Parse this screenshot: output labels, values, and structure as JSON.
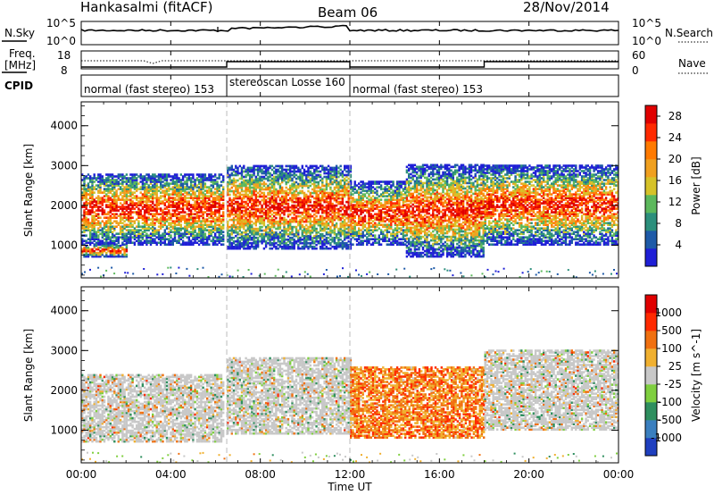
{
  "header": {
    "station": "Hankasalmi (fitACF)",
    "beam": "Beam 06",
    "date": "28/Nov/2014"
  },
  "side_labels": {
    "nsky": "N.Sky",
    "nsearch": "N.Search",
    "freq_line1": "Freq.",
    "freq_line2": "[MHz]",
    "nave": "Nave",
    "cpid": "CPID"
  },
  "noise_panel": {
    "left_ticks": [
      "10^5",
      "10^0"
    ],
    "right_ticks": [
      "10^5",
      "10^0"
    ]
  },
  "freq_panel": {
    "left_ticks": [
      "18",
      "8"
    ],
    "right_ticks": [
      "60",
      "0"
    ]
  },
  "cpid_segments": [
    {
      "label": "normal (fast stereo) 153",
      "start_h": 0,
      "end_h": 6.5
    },
    {
      "label": "stereoscan Losse 160",
      "start_h": 6.5,
      "end_h": 12
    },
    {
      "label": "normal (fast stereo) 153",
      "start_h": 12,
      "end_h": 24
    }
  ],
  "chart_data": [
    {
      "type": "heatmap",
      "xlabel": "Time UT",
      "ylabel": "Slant Range [km]",
      "x_ticks": [
        "00:00",
        "04:00",
        "08:00",
        "12:00",
        "16:00",
        "20:00",
        "00:00"
      ],
      "x_range_hours": [
        0,
        24
      ],
      "y_ticks": [
        "1000",
        "2000",
        "3000",
        "4000"
      ],
      "ylim": [
        180,
        4600
      ],
      "colorbar": {
        "label": "Power [dB]",
        "ticks": [
          "4",
          "8",
          "12",
          "16",
          "20",
          "24",
          "28"
        ],
        "range": [
          0,
          30
        ],
        "colors": [
          "#1f1fd6",
          "#1e5aa8",
          "#2c8f7c",
          "#5cb85c",
          "#d6c229",
          "#f0a020",
          "#ff7a00",
          "#ff2a00",
          "#e00000"
        ]
      },
      "echo_bands": [
        {
          "start_h": 0,
          "end_h": 6.3,
          "range_km": [
            1000,
            2800
          ],
          "peak_db": 28
        },
        {
          "start_h": 0,
          "end_h": 2,
          "range_km": [
            700,
            1000
          ],
          "peak_db": 28
        },
        {
          "start_h": 6.5,
          "end_h": 12,
          "range_km": [
            900,
            3000
          ],
          "peak_db": 24
        },
        {
          "start_h": 12,
          "end_h": 14.5,
          "range_km": [
            1000,
            2600
          ],
          "peak_db": 28
        },
        {
          "start_h": 14.5,
          "end_h": 18,
          "range_km": [
            700,
            3000
          ],
          "peak_db": 28
        },
        {
          "start_h": 18,
          "end_h": 24,
          "range_km": [
            1000,
            3000
          ],
          "peak_db": 28
        }
      ]
    },
    {
      "type": "heatmap",
      "xlabel": "Time UT",
      "ylabel": "Slant Range [km]",
      "x_ticks": [
        "00:00",
        "04:00",
        "08:00",
        "12:00",
        "16:00",
        "20:00",
        "00:00"
      ],
      "x_range_hours": [
        0,
        24
      ],
      "y_ticks": [
        "1000",
        "2000",
        "3000",
        "4000"
      ],
      "ylim": [
        180,
        4600
      ],
      "colorbar": {
        "label": "Velocity [m s^-1]",
        "ticks": [
          "1000",
          "500",
          "100",
          "25",
          "-25",
          "-100",
          "-500",
          "-1000"
        ],
        "colors": [
          "#1f3fbf",
          "#3a7fbf",
          "#2f8f5f",
          "#7fcf3f",
          "#c8c8c8",
          "#f0b030",
          "#f07010",
          "#ff2a00",
          "#e00000"
        ]
      },
      "echo_bands": [
        {
          "start_h": 0,
          "end_h": 6.3,
          "range_km": [
            700,
            2400
          ],
          "class": "ground"
        },
        {
          "start_h": 6.5,
          "end_h": 12,
          "range_km": [
            900,
            2800
          ],
          "class": "ground"
        },
        {
          "start_h": 12,
          "end_h": 18,
          "range_km": [
            800,
            2600
          ],
          "class": "toward"
        },
        {
          "start_h": 18,
          "end_h": 24,
          "range_km": [
            1000,
            3000
          ],
          "class": "ground"
        }
      ]
    }
  ]
}
